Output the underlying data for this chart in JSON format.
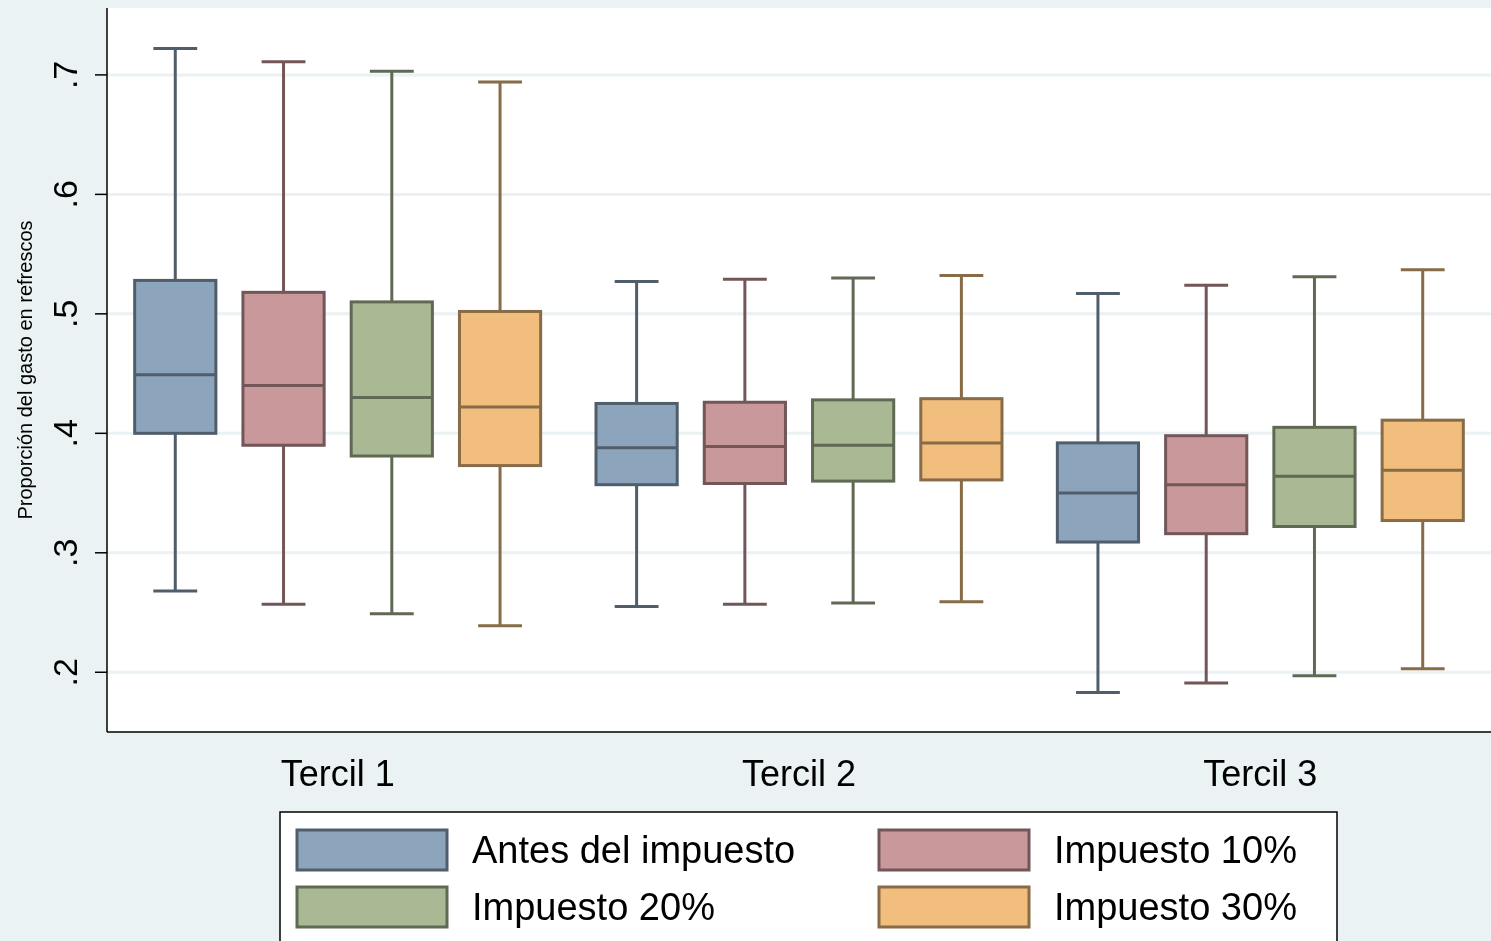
{
  "chart_data": {
    "type": "box",
    "ylabel": "Proporción del gasto en refrescos",
    "categories": [
      "Tercil 1",
      "Tercil 2",
      "Tercil 3"
    ],
    "ylim": [
      0.15,
      0.756
    ],
    "yticks": [
      {
        "value": 0.2,
        "label": ".2"
      },
      {
        "value": 0.3,
        "label": ".3"
      },
      {
        "value": 0.4,
        "label": ".4"
      },
      {
        "value": 0.5,
        "label": ".5"
      },
      {
        "value": 0.6,
        "label": ".6"
      },
      {
        "value": 0.7,
        "label": ".7"
      }
    ],
    "grid": "y",
    "legend": "bottom",
    "series": [
      {
        "name": "Antes del impuesto",
        "color": "#8da5bc",
        "boxes": [
          {
            "low": 0.268,
            "q1": 0.4,
            "median": 0.449,
            "q3": 0.528,
            "high": 0.722
          },
          {
            "low": 0.255,
            "q1": 0.357,
            "median": 0.388,
            "q3": 0.425,
            "high": 0.527
          },
          {
            "low": 0.183,
            "q1": 0.309,
            "median": 0.35,
            "q3": 0.392,
            "high": 0.517
          }
        ]
      },
      {
        "name": "Impuesto 10%",
        "color": "#c9989b",
        "boxes": [
          {
            "low": 0.257,
            "q1": 0.39,
            "median": 0.44,
            "q3": 0.518,
            "high": 0.711
          },
          {
            "low": 0.257,
            "q1": 0.358,
            "median": 0.389,
            "q3": 0.426,
            "high": 0.529
          },
          {
            "low": 0.191,
            "q1": 0.316,
            "median": 0.357,
            "q3": 0.398,
            "high": 0.524
          }
        ]
      },
      {
        "name": "Impuesto 20%",
        "color": "#a9b994",
        "boxes": [
          {
            "low": 0.249,
            "q1": 0.381,
            "median": 0.43,
            "q3": 0.51,
            "high": 0.703
          },
          {
            "low": 0.258,
            "q1": 0.36,
            "median": 0.39,
            "q3": 0.428,
            "high": 0.53
          },
          {
            "low": 0.197,
            "q1": 0.322,
            "median": 0.364,
            "q3": 0.405,
            "high": 0.531
          }
        ]
      },
      {
        "name": "Impuesto 30%",
        "color": "#f1be7e",
        "boxes": [
          {
            "low": 0.239,
            "q1": 0.373,
            "median": 0.422,
            "q3": 0.502,
            "high": 0.694
          },
          {
            "low": 0.259,
            "q1": 0.361,
            "median": 0.392,
            "q3": 0.429,
            "high": 0.532
          },
          {
            "low": 0.203,
            "q1": 0.327,
            "median": 0.369,
            "q3": 0.411,
            "high": 0.537
          }
        ]
      }
    ]
  }
}
